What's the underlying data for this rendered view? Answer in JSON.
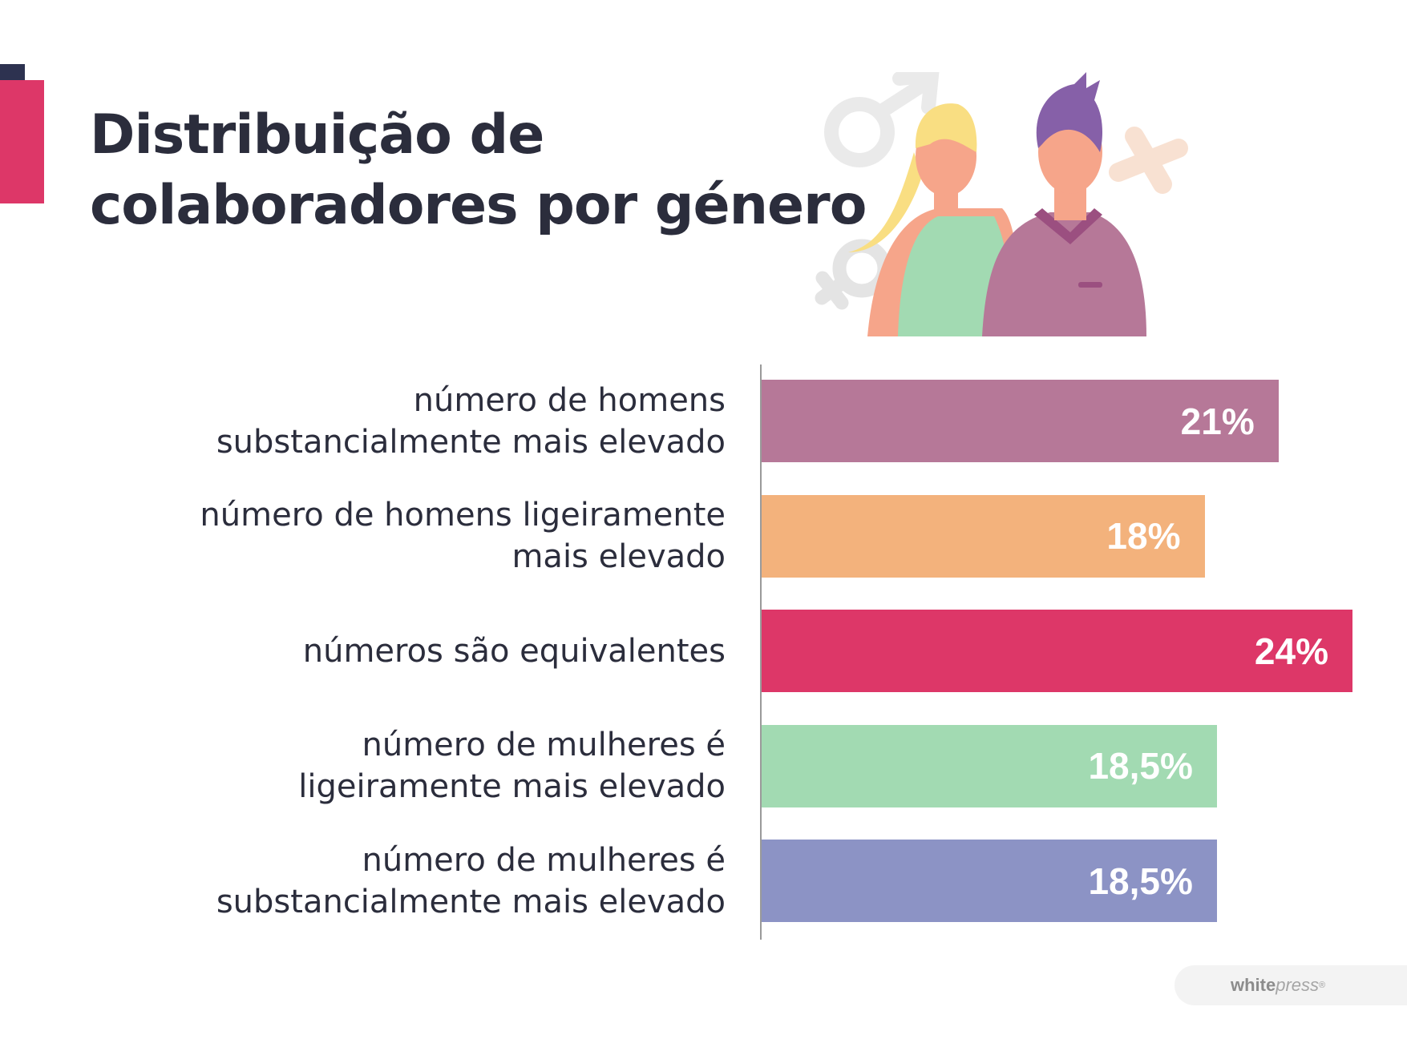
{
  "title_lines": [
    "Distribuição de",
    "colaboradores por género"
  ],
  "colors": {
    "accent": "#dd3768",
    "accent_dark": "#2d3250",
    "text": "#2b2d3c"
  },
  "illustration": {
    "icons": [
      "male-symbol-icon",
      "female-symbol-icon",
      "plus-symbol-icon"
    ],
    "figures": [
      "woman-figure",
      "man-figure"
    ]
  },
  "chart_data": {
    "type": "bar",
    "orientation": "horizontal",
    "categories": [
      "número de homens\nsubstancialmente mais elevado",
      "número de homens ligeiramente\nmais elevado",
      "números são equivalentes",
      "número de mulheres é\nligeiramente mais elevado",
      "número de mulheres é\nsubstancialmente mais elevado"
    ],
    "values": [
      21,
      18,
      24,
      18.5,
      18.5
    ],
    "value_labels": [
      "21",
      "18",
      "24",
      "18,5",
      "18,5"
    ],
    "unit": "%",
    "bar_colors": [
      "#b67898",
      "#f3b27c",
      "#dd3768",
      "#a2dab2",
      "#8c93c5"
    ],
    "title": "Distribuição de colaboradores por género",
    "xlabel": "",
    "ylabel": "",
    "grid": false,
    "legend": false
  },
  "brand": {
    "white": "white",
    "press": "press",
    "registered": "®"
  }
}
